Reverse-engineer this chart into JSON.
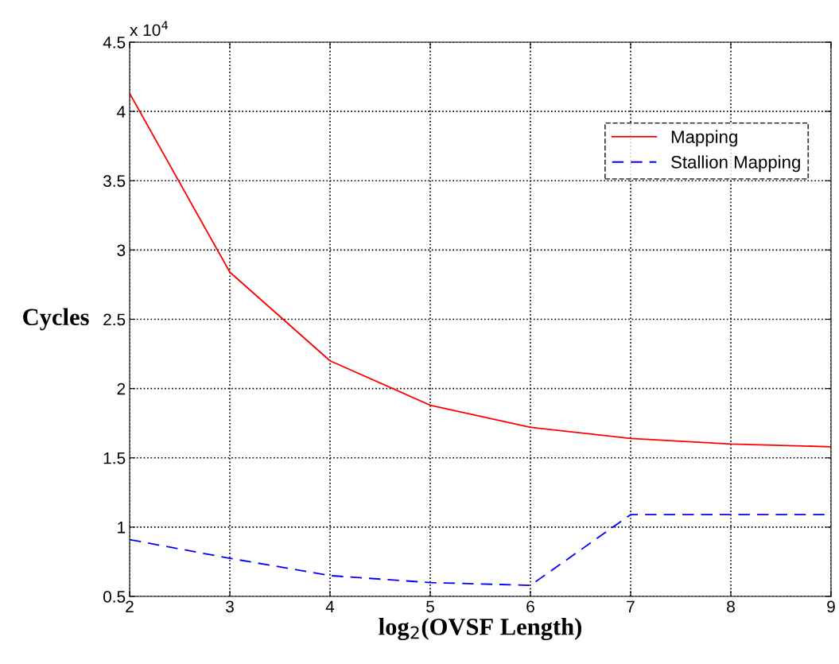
{
  "chart_data": {
    "type": "line",
    "xlabel": "log$_{2}$(OVSF Length)",
    "ylabel": "Cycles",
    "x": [
      2,
      3,
      4,
      5,
      6,
      7,
      8,
      9
    ],
    "series": [
      {
        "name": "Mapping",
        "color": "#ff0000",
        "line_style": "solid",
        "values": [
          4.13,
          2.84,
          2.2,
          1.88,
          1.72,
          1.64,
          1.6,
          1.58
        ]
      },
      {
        "name": "Stallion Mapping",
        "color": "#0000ff",
        "line_style": "dashed",
        "values": [
          0.91,
          0.775,
          0.65,
          0.6,
          0.58,
          1.09,
          1.09,
          1.09
        ]
      }
    ],
    "xlim": [
      2,
      9
    ],
    "xticks": [
      2,
      3,
      4,
      5,
      6,
      7,
      8,
      9
    ],
    "ylim": [
      0.5,
      4.5
    ],
    "yticks": [
      0.5,
      1,
      1.5,
      2,
      2.5,
      3,
      3.5,
      4,
      4.5
    ],
    "annotations": [
      "x 10$^{4}$"
    ],
    "grid": true,
    "legend": "top right",
    "marker": "none"
  }
}
